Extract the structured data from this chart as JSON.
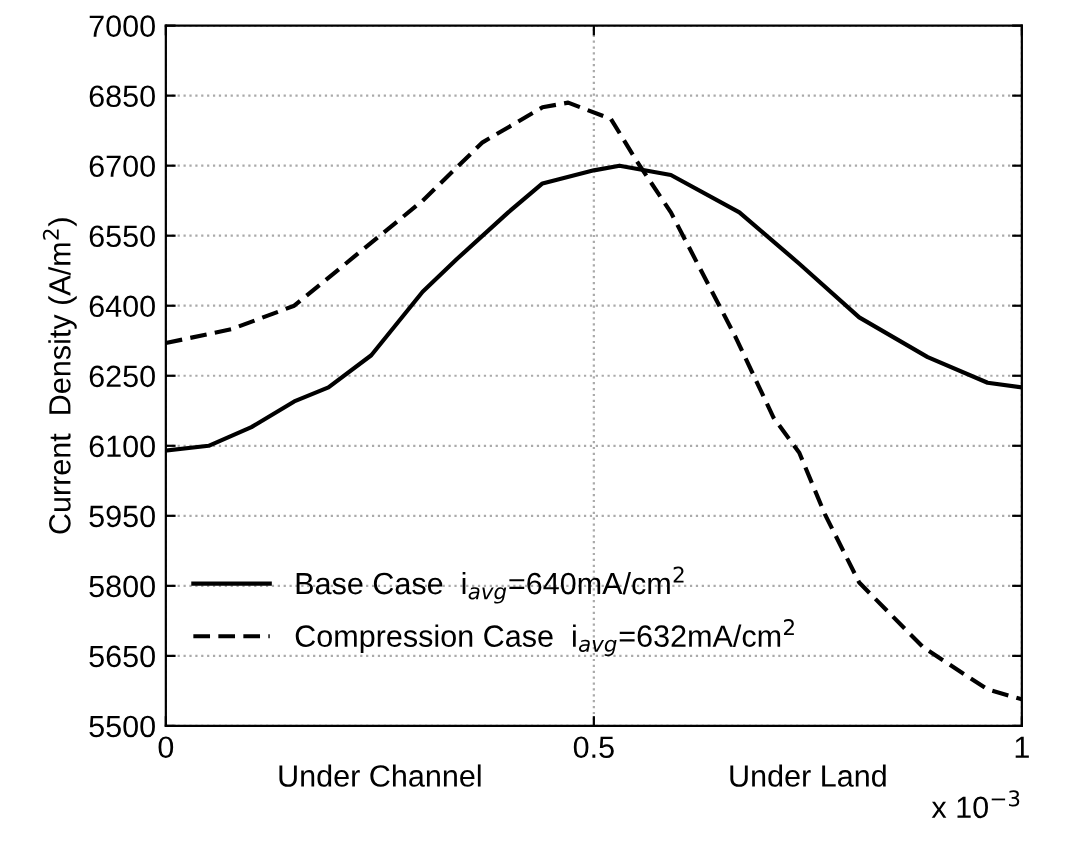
{
  "chart_data": {
    "type": "line",
    "ylabel": "Current  Density (A/m$^{2}$)",
    "xlim": [
      0,
      1
    ],
    "xticks": [
      0,
      0.5,
      1
    ],
    "ylim": [
      5500,
      7000
    ],
    "yticks": [
      5500,
      5650,
      5800,
      5950,
      6100,
      6250,
      6400,
      6550,
      6700,
      6850,
      7000
    ],
    "grid": true,
    "legend": "bottom left",
    "annotations": [
      "Under Channel",
      "Under Land",
      "x 10$^{−3}$"
    ],
    "series": [
      {
        "name": "Base Case  i$_{avg}$=640mA/cm$^{2}$",
        "color": "#000000",
        "line_style": "solid",
        "x": [
          0,
          0.05,
          0.1,
          0.15,
          0.19,
          0.24,
          0.3,
          0.34,
          0.4,
          0.44,
          0.5,
          0.53,
          0.59,
          0.67,
          0.74,
          0.81,
          0.89,
          0.96,
          1
        ],
        "values": [
          6090,
          6100,
          6140,
          6195,
          6225,
          6294,
          6430,
          6500,
          6600,
          6662,
          6690,
          6700,
          6680,
          6600,
          6490,
          6375,
          6290,
          6235,
          6225
        ]
      },
      {
        "name": "Compression Case  i$_{avg}$=632mA/cm$^{2}$",
        "color": "#000000",
        "line_style": "dashed",
        "x": [
          0,
          0.077,
          0.15,
          0.22,
          0.3,
          0.37,
          0.44,
          0.47,
          0.52,
          0.55,
          0.59,
          0.665,
          0.71,
          0.74,
          0.77,
          0.81,
          0.885,
          0.96,
          1
        ],
        "values": [
          6320,
          6350,
          6400,
          6505,
          6625,
          6750,
          6825,
          6835,
          6800,
          6710,
          6600,
          6335,
          6160,
          6085,
          5953,
          5807,
          5668,
          5578,
          5557
        ]
      }
    ]
  }
}
